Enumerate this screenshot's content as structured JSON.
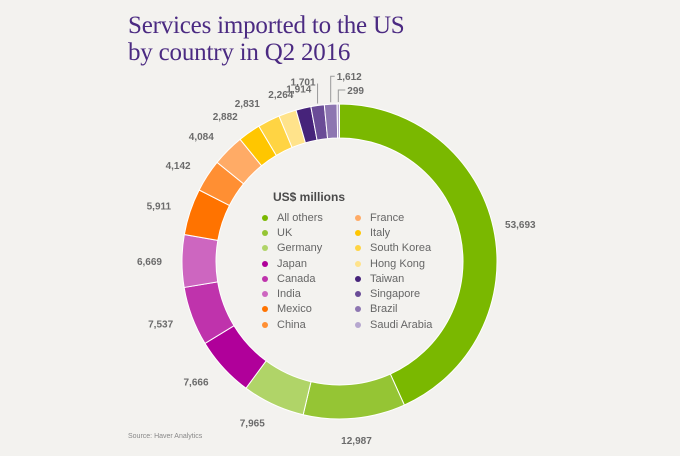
{
  "title_lines": [
    "Services imported to the US",
    "by country in Q2 2016"
  ],
  "source": "Source: Haver Analytics",
  "chart_data": {
    "type": "pie",
    "variant": "donut",
    "title": "Services imported to the US by country in Q2 2016",
    "unit": "US$ millions",
    "legend_title": "US$ millions",
    "legend_position": "center",
    "start": "top",
    "direction": "clockwise",
    "slices": [
      {
        "name": "All others",
        "value": 53693,
        "label": "53,693",
        "color": "#7ab800"
      },
      {
        "name": "UK",
        "value": 12987,
        "label": "12,987",
        "color": "#95c534"
      },
      {
        "name": "Germany",
        "value": 7965,
        "label": "7,965",
        "color": "#b0d468"
      },
      {
        "name": "Japan",
        "value": 7666,
        "label": "7,666",
        "color": "#b0009a"
      },
      {
        "name": "Canada",
        "value": 7537,
        "label": "7,537",
        "color": "#bf33ac"
      },
      {
        "name": "India",
        "value": 6669,
        "label": "6,669",
        "color": "#cd66c0"
      },
      {
        "name": "Mexico",
        "value": 5911,
        "label": "5,911",
        "color": "#ff7300"
      },
      {
        "name": "China",
        "value": 4142,
        "label": "4,142",
        "color": "#ff8f33"
      },
      {
        "name": "France",
        "value": 4084,
        "label": "4,084",
        "color": "#ffab66"
      },
      {
        "name": "Italy",
        "value": 2882,
        "label": "2,882",
        "color": "#ffc600"
      },
      {
        "name": "South Korea",
        "value": 2831,
        "label": "2,831",
        "color": "#ffd443"
      },
      {
        "name": "Hong Kong",
        "value": 2264,
        "label": "2,264",
        "color": "#ffe38b"
      },
      {
        "name": "Taiwan",
        "value": 1914,
        "label": "1,914",
        "color": "#46237a"
      },
      {
        "name": "Singapore",
        "value": 1701,
        "label": "1,701",
        "color": "#6a4c97"
      },
      {
        "name": "Brazil",
        "value": 1612,
        "label": "1,612",
        "color": "#8d76b1"
      },
      {
        "name": "Saudi Arabia",
        "value": 299,
        "label": "299",
        "color": "#b6a7cf"
      }
    ]
  }
}
